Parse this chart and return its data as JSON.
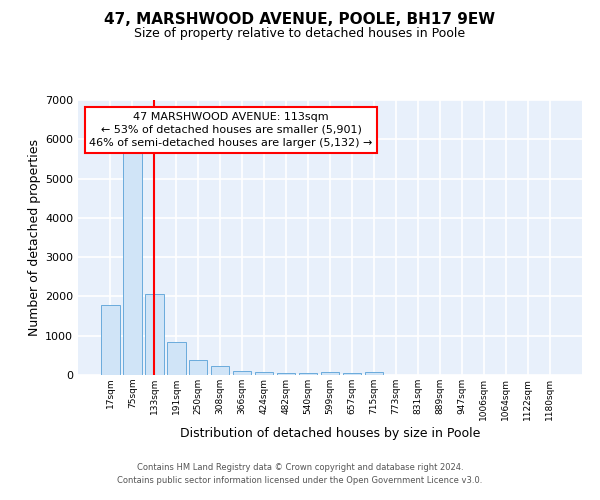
{
  "title": "47, MARSHWOOD AVENUE, POOLE, BH17 9EW",
  "subtitle": "Size of property relative to detached houses in Poole",
  "xlabel": "Distribution of detached houses by size in Poole",
  "ylabel": "Number of detached properties",
  "bin_labels": [
    "17sqm",
    "75sqm",
    "133sqm",
    "191sqm",
    "250sqm",
    "308sqm",
    "366sqm",
    "424sqm",
    "482sqm",
    "540sqm",
    "599sqm",
    "657sqm",
    "715sqm",
    "773sqm",
    "831sqm",
    "889sqm",
    "947sqm",
    "1006sqm",
    "1064sqm",
    "1122sqm",
    "1180sqm"
  ],
  "bar_heights": [
    1780,
    5750,
    2060,
    830,
    370,
    230,
    110,
    80,
    55,
    45,
    75,
    40,
    80,
    0,
    0,
    0,
    0,
    0,
    0,
    0,
    0
  ],
  "bar_color": "#d0e4f7",
  "bar_edge_color": "#6aabdc",
  "red_line_x": 2.0,
  "annotation_text": "47 MARSHWOOD AVENUE: 113sqm\n← 53% of detached houses are smaller (5,901)\n46% of semi-detached houses are larger (5,132) →",
  "ylim": [
    0,
    7000
  ],
  "yticks": [
    0,
    1000,
    2000,
    3000,
    4000,
    5000,
    6000,
    7000
  ],
  "footer_line1": "Contains HM Land Registry data © Crown copyright and database right 2024.",
  "footer_line2": "Contains public sector information licensed under the Open Government Licence v3.0.",
  "plot_bg_color": "#e8f0fb",
  "grid_color": "white",
  "title_fontsize": 11,
  "subtitle_fontsize": 9,
  "annotation_font_size": 8
}
